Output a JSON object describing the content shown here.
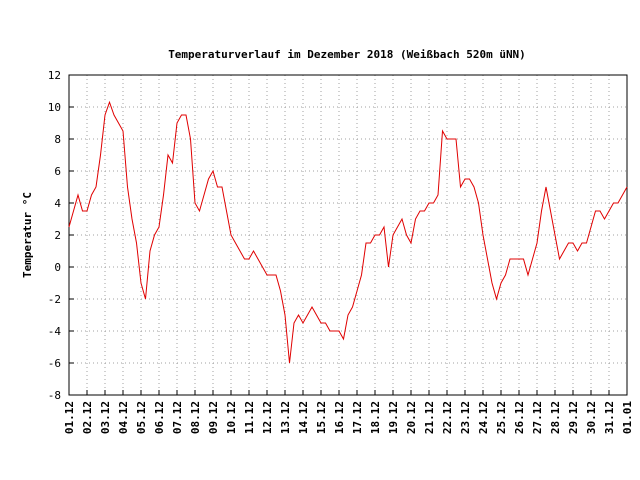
{
  "chart_data": {
    "type": "line",
    "title": "Temperaturverlauf im Dezember 2018 (Weißbach 520m üNN)",
    "y_label": "Temperatur °C",
    "color": "#e00000",
    "grid": true,
    "ylim": [
      -8,
      12
    ],
    "yticks": [
      -8,
      -6,
      -4,
      -2,
      0,
      2,
      4,
      6,
      8,
      10,
      12
    ],
    "categories": [
      "01.12",
      null,
      null,
      null,
      "02.12",
      null,
      null,
      null,
      "03.12",
      null,
      null,
      null,
      "04.12",
      null,
      null,
      null,
      "05.12",
      null,
      null,
      null,
      "06.12",
      null,
      null,
      null,
      "07.12",
      null,
      null,
      null,
      "08.12",
      null,
      null,
      null,
      "09.12",
      null,
      null,
      null,
      "10.12",
      null,
      null,
      null,
      "11.12",
      null,
      null,
      null,
      "12.12",
      null,
      null,
      null,
      "13.12",
      null,
      null,
      null,
      "14.12",
      null,
      null,
      null,
      "15.12",
      null,
      null,
      null,
      "16.12",
      null,
      null,
      null,
      "17.12",
      null,
      null,
      null,
      "18.12",
      null,
      null,
      null,
      "19.12",
      null,
      null,
      null,
      "20.12",
      null,
      null,
      null,
      "21.12",
      null,
      null,
      null,
      "22.12",
      null,
      null,
      null,
      "23.12",
      null,
      null,
      null,
      "24.12",
      null,
      null,
      null,
      "25.12",
      null,
      null,
      null,
      "26.12",
      null,
      null,
      null,
      "27.12",
      null,
      null,
      null,
      "28.12",
      null,
      null,
      null,
      "29.12",
      null,
      null,
      null,
      "30.12",
      null,
      null,
      null,
      "31.12",
      null,
      null,
      null,
      "01.01"
    ],
    "values": [
      2.5,
      3.5,
      4.5,
      3.5,
      3.5,
      4.5,
      5,
      7,
      9.5,
      10.3,
      9.5,
      9,
      8.5,
      5,
      3,
      1.5,
      -1,
      -2,
      1,
      2,
      2.5,
      4.5,
      7,
      6.5,
      9,
      9.5,
      9.5,
      8,
      4,
      3.5,
      4.5,
      5.5,
      6,
      5,
      5,
      3.5,
      2,
      1.5,
      1,
      0.5,
      0.5,
      1,
      0.5,
      0,
      -0.5,
      -0.5,
      -0.5,
      -1.5,
      -3,
      -6,
      -3.5,
      -3,
      -3.5,
      -3,
      -2.5,
      -3,
      -3.5,
      -3.5,
      -4,
      -4,
      -4,
      -4.5,
      -3,
      -2.5,
      -1.5,
      -0.5,
      1.5,
      1.5,
      2,
      2,
      2.5,
      0,
      2,
      2.5,
      3,
      2,
      1.5,
      3,
      3.5,
      3.5,
      4,
      4,
      4.5,
      8.5,
      8,
      8,
      8,
      5,
      5.5,
      5.5,
      5,
      4,
      2,
      0.5,
      -1,
      -2,
      -1,
      -0.5,
      0.5,
      0.5,
      0.5,
      0.5,
      -0.5,
      0.5,
      1.5,
      3.5,
      5,
      3.5,
      2,
      0.5,
      1,
      1.5,
      1.5,
      1,
      1.5,
      1.5,
      2.5,
      3.5,
      3.5,
      3,
      3.5,
      4,
      4,
      4.5,
      5
    ]
  }
}
